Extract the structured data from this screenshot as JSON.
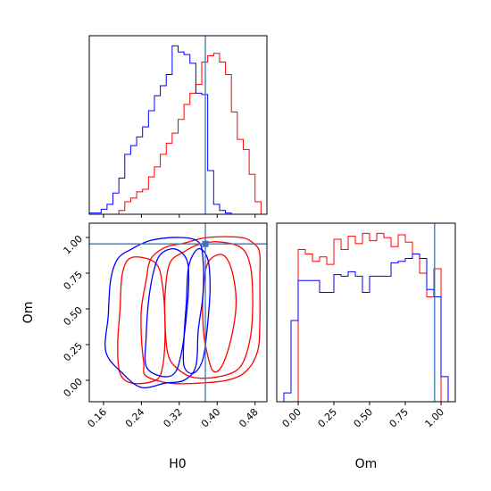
{
  "chart_data": {
    "type": "corner-plot",
    "parameters": [
      "H0",
      "Om"
    ],
    "truth": {
      "H0": 0.375,
      "Om": 0.955
    },
    "truth_color": "#3a76af",
    "series_colors": {
      "red": "#ff0000",
      "blue": "#0000ff"
    },
    "panels": {
      "h0_hist": {
        "xlim": [
          0.13,
          0.505
        ],
        "x_ticks": [
          0.16,
          0.24,
          0.32,
          0.4,
          0.48
        ],
        "bin_edges": [
          0.13,
          0.1425,
          0.155,
          0.1675,
          0.18,
          0.1925,
          0.205,
          0.2175,
          0.23,
          0.2425,
          0.255,
          0.2675,
          0.28,
          0.2925,
          0.305,
          0.3175,
          0.33,
          0.3425,
          0.355,
          0.3675,
          0.38,
          0.3925,
          0.405,
          0.4175,
          0.43,
          0.4425,
          0.455,
          0.4675,
          0.48,
          0.4925,
          0.505
        ],
        "series": [
          {
            "color": "red",
            "counts": [
              0,
              0,
              0,
              0,
              0,
              3,
              10,
              13,
              18,
              20,
              30,
              38,
              48,
              57,
              65,
              76,
              88,
              97,
              104,
              122,
              127,
              129,
              122,
              112,
              82,
              60,
              52,
              32,
              10,
              0
            ]
          },
          {
            "color": "blue",
            "counts": [
              1,
              1,
              4,
              8,
              17,
              29,
              48,
              55,
              62,
              70,
              83,
              95,
              103,
              112,
              135,
              130,
              128,
              121,
              97,
              96,
              35,
              8,
              3,
              1,
              0,
              0,
              0,
              0,
              0,
              0
            ]
          }
        ]
      },
      "om_hist": {
        "xlim": [
          -0.15,
          1.1
        ],
        "x_ticks": [
          0.0,
          0.25,
          0.5,
          0.75,
          1.0
        ],
        "bin_edges": [
          -0.15,
          -0.1,
          -0.05,
          0.0,
          0.05,
          0.1,
          0.15,
          0.2,
          0.25,
          0.3,
          0.35,
          0.4,
          0.45,
          0.5,
          0.55,
          0.6,
          0.65,
          0.7,
          0.75,
          0.8,
          0.85,
          0.9,
          0.95,
          1.0,
          1.05,
          1.1
        ],
        "series": [
          {
            "color": "red",
            "counts": [
              0,
              0,
              0,
              103,
              100,
              95,
              98,
              93,
              110,
              103,
              112,
              107,
              114,
              109,
              114,
              111,
              105,
              113,
              108,
              100,
              87,
              71,
              90,
              0,
              0
            ]
          },
          {
            "color": "blue",
            "counts": [
              0,
              6,
              55,
              82,
              82,
              82,
              74,
              74,
              86,
              85,
              88,
              85,
              74,
              85,
              85,
              85,
              94,
              95,
              97,
              100,
              97,
              76,
              71,
              17,
              0
            ]
          }
        ]
      },
      "joint": {
        "xlim": [
          0.13,
          0.505
        ],
        "ylim": [
          -0.15,
          1.1
        ],
        "x_ticks": [
          0.16,
          0.24,
          0.32,
          0.4,
          0.48
        ],
        "y_ticks": [
          0.0,
          0.25,
          0.5,
          0.75,
          1.0
        ],
        "xlabel": "H0",
        "ylabel": "Om",
        "contours": [
          {
            "color": "red",
            "points": [
              [
                0.25,
                0.03
              ],
              [
                0.3,
                -0.02
              ],
              [
                0.36,
                -0.02
              ],
              [
                0.42,
                0.0
              ],
              [
                0.46,
                0.06
              ],
              [
                0.485,
                0.2
              ],
              [
                0.49,
                0.4
              ],
              [
                0.49,
                0.7
              ],
              [
                0.49,
                0.88
              ],
              [
                0.48,
                0.95
              ],
              [
                0.45,
                1.0
              ],
              [
                0.38,
                1.0
              ],
              [
                0.33,
                0.96
              ],
              [
                0.29,
                0.93
              ],
              [
                0.26,
                0.85
              ],
              [
                0.25,
                0.7
              ],
              [
                0.24,
                0.5
              ],
              [
                0.24,
                0.3
              ],
              [
                0.245,
                0.12
              ]
            ]
          },
          {
            "color": "red",
            "points": [
              [
                0.31,
                0.1
              ],
              [
                0.35,
                0.02
              ],
              [
                0.41,
                0.03
              ],
              [
                0.45,
                0.1
              ],
              [
                0.47,
                0.3
              ],
              [
                0.475,
                0.55
              ],
              [
                0.47,
                0.8
              ],
              [
                0.45,
                0.93
              ],
              [
                0.4,
                0.97
              ],
              [
                0.36,
                0.95
              ],
              [
                0.33,
                0.9
              ],
              [
                0.3,
                0.82
              ],
              [
                0.29,
                0.6
              ],
              [
                0.29,
                0.4
              ],
              [
                0.295,
                0.2
              ]
            ]
          },
          {
            "color": "red",
            "points": [
              [
                0.375,
                0.25
              ],
              [
                0.39,
                0.07
              ],
              [
                0.41,
                0.1
              ],
              [
                0.43,
                0.3
              ],
              [
                0.44,
                0.55
              ],
              [
                0.43,
                0.78
              ],
              [
                0.41,
                0.88
              ],
              [
                0.38,
                0.82
              ],
              [
                0.37,
                0.6
              ],
              [
                0.37,
                0.4
              ]
            ]
          },
          {
            "color": "red",
            "points": [
              [
                0.195,
                0.05
              ],
              [
                0.22,
                -0.02
              ],
              [
                0.27,
                0.0
              ],
              [
                0.285,
                0.1
              ],
              [
                0.29,
                0.35
              ],
              [
                0.285,
                0.65
              ],
              [
                0.27,
                0.82
              ],
              [
                0.22,
                0.86
              ],
              [
                0.2,
                0.75
              ],
              [
                0.195,
                0.5
              ],
              [
                0.19,
                0.25
              ]
            ]
          },
          {
            "color": "blue",
            "points": [
              [
                0.2,
                0.05
              ],
              [
                0.24,
                -0.05
              ],
              [
                0.29,
                -0.02
              ],
              [
                0.33,
                0.0
              ],
              [
                0.355,
                0.1
              ],
              [
                0.36,
                0.35
              ],
              [
                0.37,
                0.6
              ],
              [
                0.37,
                0.85
              ],
              [
                0.36,
                0.97
              ],
              [
                0.32,
                1.0
              ],
              [
                0.26,
                0.98
              ],
              [
                0.22,
                0.92
              ],
              [
                0.19,
                0.85
              ],
              [
                0.175,
                0.7
              ],
              [
                0.17,
                0.45
              ],
              [
                0.165,
                0.2
              ]
            ]
          },
          {
            "color": "blue",
            "points": [
              [
                0.25,
                0.1
              ],
              [
                0.28,
                0.03
              ],
              [
                0.31,
                0.05
              ],
              [
                0.325,
                0.2
              ],
              [
                0.335,
                0.45
              ],
              [
                0.34,
                0.7
              ],
              [
                0.335,
                0.85
              ],
              [
                0.31,
                0.92
              ],
              [
                0.28,
                0.88
              ],
              [
                0.265,
                0.75
              ],
              [
                0.255,
                0.55
              ],
              [
                0.25,
                0.3
              ]
            ]
          },
          {
            "color": "blue",
            "points": [
              [
                0.33,
                0.1
              ],
              [
                0.35,
                0.05
              ],
              [
                0.37,
                0.15
              ],
              [
                0.38,
                0.4
              ],
              [
                0.385,
                0.65
              ],
              [
                0.38,
                0.85
              ],
              [
                0.36,
                0.92
              ],
              [
                0.34,
                0.8
              ],
              [
                0.335,
                0.55
              ],
              [
                0.33,
                0.3
              ]
            ]
          }
        ]
      }
    }
  }
}
